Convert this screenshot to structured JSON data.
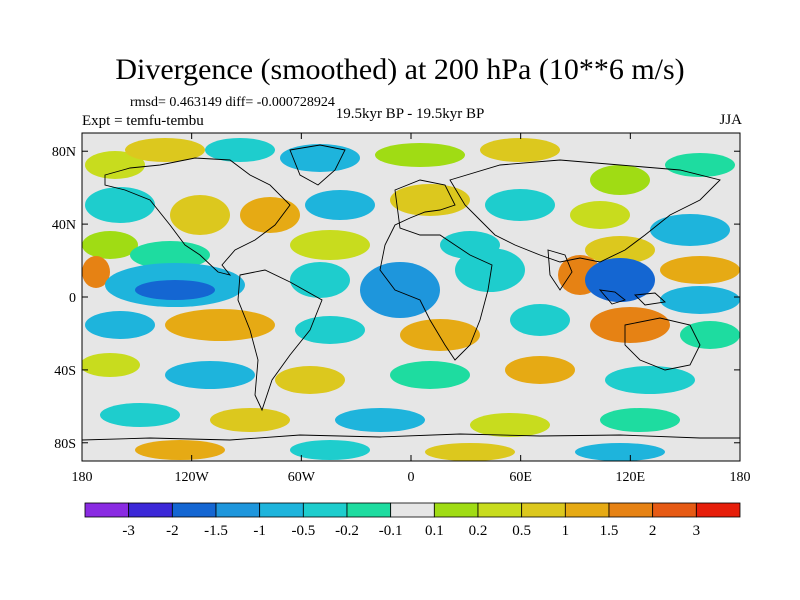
{
  "figure": {
    "title": "Divergence (smoothed) at 200 hPa (10**6 m/s)",
    "stats": "rmsd= 0.463149 diff= -0.000728924",
    "experiment": "Expt = temfu-tembu",
    "period": "19.5kyr BP - 19.5kyr BP",
    "season": "JJA"
  },
  "axes": {
    "lon_ticks": [
      {
        "lon": -180,
        "label": "180"
      },
      {
        "lon": -120,
        "label": "120W"
      },
      {
        "lon": -60,
        "label": "60W"
      },
      {
        "lon": 0,
        "label": "0"
      },
      {
        "lon": 60,
        "label": "60E"
      },
      {
        "lon": 120,
        "label": "120E"
      },
      {
        "lon": 180,
        "label": "180"
      }
    ],
    "lat_ticks": [
      {
        "lat": 80,
        "label": "80N"
      },
      {
        "lat": 40,
        "label": "40N"
      },
      {
        "lat": 0,
        "label": "0"
      },
      {
        "lat": -40,
        "label": "40S"
      },
      {
        "lat": -80,
        "label": "80S"
      }
    ],
    "lon_range": [
      -180,
      180
    ],
    "lat_range": [
      -90,
      90
    ]
  },
  "colorbar": {
    "colors": [
      "#8a2be2",
      "#3c28d8",
      "#1466d2",
      "#1e96dc",
      "#1eb4dc",
      "#1ecdcd",
      "#1edca0",
      "#e6e6e6",
      "#a0dc14",
      "#c8dc1e",
      "#dcc81e",
      "#e6aa14",
      "#e68214",
      "#e65a14",
      "#e61e0a"
    ],
    "labels": [
      "-3",
      "-2",
      "-1.5",
      "-1",
      "-0.5",
      "-0.2",
      "-0.1",
      "0.1",
      "0.2",
      "0.5",
      "1",
      "1.5",
      "2",
      "3"
    ]
  },
  "map_colors": {
    "background": "#e6e6e6",
    "coast": "#000000"
  }
}
